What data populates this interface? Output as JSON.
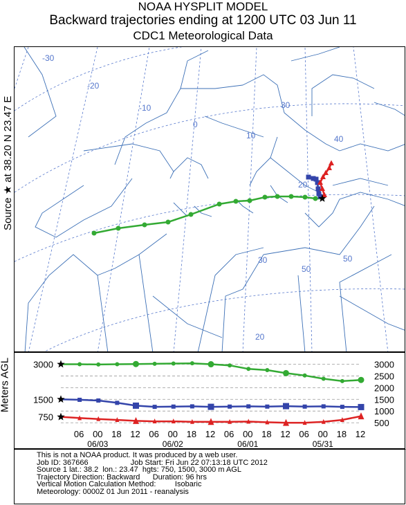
{
  "header": {
    "title": "NOAA HYSPLIT MODEL",
    "subtitle": "Backward trajectories ending at 1200 UTC 03 Jun 11",
    "subtitle2": "CDC1 Meteorological Data"
  },
  "side_label": "Source ★ at   38.20 N   23.47 E",
  "colors": {
    "green": "#33aa33",
    "blue": "#3344aa",
    "red": "#dd2222",
    "map_lines": "#3b6fb6",
    "grid": "#5577cc"
  },
  "map": {
    "grid_labels": [
      "-30",
      "-20",
      "-10",
      "0",
      "10",
      "20",
      "30",
      "40",
      "50",
      "50",
      "30",
      "20"
    ],
    "source": {
      "lat": 38.2,
      "lon": 23.47
    }
  },
  "chart_data": {
    "type": "line",
    "title": "Backward trajectories ending at 1200 UTC 03 Jun 11",
    "ylabel": "Meters AGL",
    "ylim": [
      0,
      3400
    ],
    "y_ticks_left": [
      750,
      1500,
      3000
    ],
    "y_ticks_right": [
      500,
      1000,
      1500,
      2000,
      2500,
      3000
    ],
    "x_tick_labels": [
      "06",
      "00",
      "18",
      "12",
      "06",
      "00",
      "18",
      "12",
      "06",
      "00",
      "18",
      "12",
      "06",
      "00",
      "18",
      "12"
    ],
    "date_labels": [
      "06/03",
      "06/02",
      "06/01",
      "05/31"
    ],
    "hours_back": [
      0,
      6,
      12,
      18,
      24,
      30,
      36,
      42,
      48,
      54,
      60,
      66,
      72,
      78,
      84,
      90,
      96
    ],
    "series": [
      {
        "color": "green",
        "start": 3000,
        "values": [
          3000,
          3000,
          2990,
          3000,
          3010,
          3020,
          3030,
          3040,
          3000,
          2950,
          2800,
          2750,
          2620,
          2520,
          2380,
          2280,
          2330
        ]
      },
      {
        "color": "blue",
        "start": 1500,
        "values": [
          1500,
          1480,
          1450,
          1350,
          1230,
          1180,
          1190,
          1200,
          1180,
          1190,
          1200,
          1190,
          1210,
          1190,
          1200,
          1180,
          1170
        ]
      },
      {
        "color": "red",
        "start": 750,
        "values": [
          750,
          700,
          660,
          620,
          580,
          560,
          560,
          540,
          540,
          540,
          550,
          520,
          500,
          500,
          540,
          620,
          780
        ]
      }
    ]
  },
  "info": {
    "line1": "This is not a NOAA product. It was produced by a web user.",
    "line2": "Job ID: 367666                    Job Start: Fri Jun 22 07:13:18 UTC 2012",
    "line3": "Source 1 lat.: 38.2  lon.: 23.47  hgts: 750, 1500, 3000 m AGL",
    "line4": "Trajectory Direction: Backward      Duration: 96 hrs",
    "line5": "Vertical Motion Calculation Method:         Isobaric",
    "line6": "Meteorology: 0000Z 01 Jun 2011 - reanalysis"
  }
}
